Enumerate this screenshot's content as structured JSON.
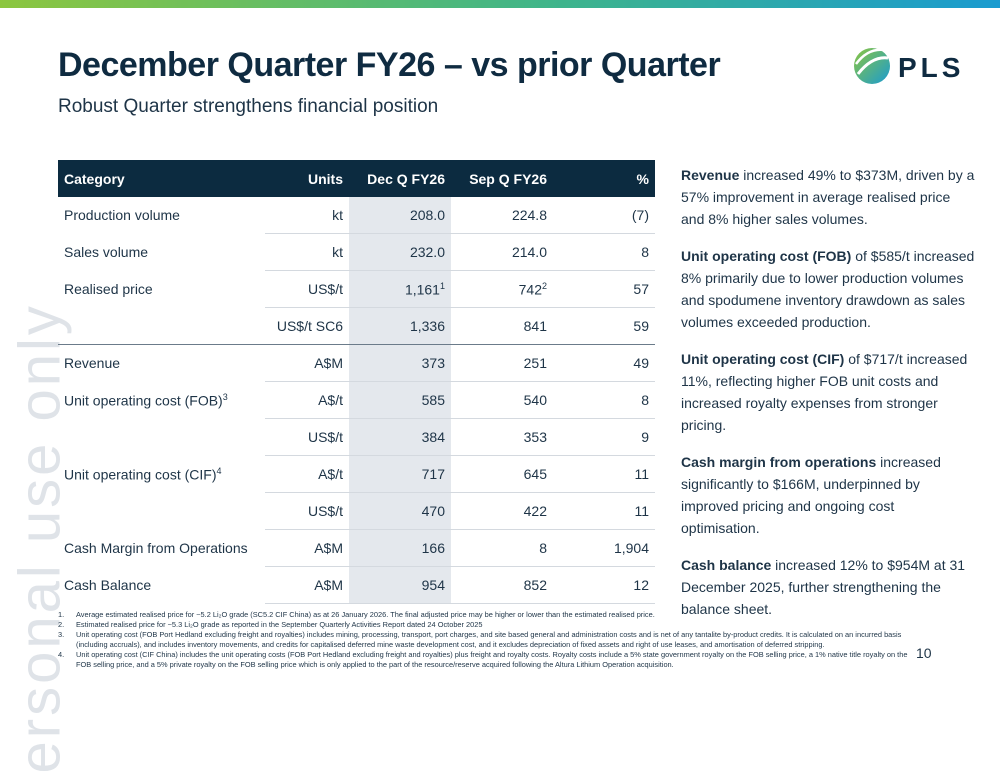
{
  "header": {
    "title": "December Quarter FY26 – vs prior Quarter",
    "subtitle": "Robust Quarter strengthens financial position",
    "logo": "PLS"
  },
  "watermark": "ersonal use only",
  "table": {
    "columns": [
      "Category",
      "Units",
      "Dec Q FY26",
      "Sep Q FY26",
      "%"
    ],
    "rows": [
      [
        "Production volume",
        "kt",
        "208.0",
        "224.8",
        "(7)"
      ],
      [
        "Sales volume",
        "kt",
        "232.0",
        "214.0",
        "8"
      ],
      [
        "Realised price",
        "US$/t",
        {
          "text": "1,161",
          "sup": "1"
        },
        {
          "text": "742",
          "sup": "2"
        },
        "57"
      ],
      [
        "",
        "US$/t SC6",
        "1,336",
        "841",
        "59"
      ],
      [
        "Revenue",
        "A$M",
        "373",
        "251",
        "49"
      ],
      [
        {
          "text": "Unit operating cost (FOB)",
          "sup": "3"
        },
        "A$/t",
        "585",
        "540",
        "8"
      ],
      [
        "",
        "US$/t",
        "384",
        "353",
        "9"
      ],
      [
        {
          "text": "Unit operating cost (CIF)",
          "sup": "4"
        },
        "A$/t",
        "717",
        "645",
        "11"
      ],
      [
        "",
        "US$/t",
        "470",
        "422",
        "11"
      ],
      [
        "Cash Margin from Operations",
        "A$M",
        "166",
        "8",
        "1,904"
      ],
      [
        "Cash Balance",
        "A$M",
        "954",
        "852",
        "12"
      ]
    ]
  },
  "commentary": [
    {
      "bold": "Revenue",
      "text": "increased 49% to $373M, driven by a 57% improvement in average realised price and 8% higher sales volumes."
    },
    {
      "bold": "Unit operating cost (FOB)",
      "text": "of $585/t increased 8% primarily due to lower production volumes and spodumene inventory drawdown as sales volumes exceeded production."
    },
    {
      "bold": "Unit operating cost (CIF)",
      "text": "of $717/t increased 11%, reflecting higher FOB unit costs and increased royalty expenses from stronger pricing."
    },
    {
      "bold": "Cash margin from operations",
      "text": "increased significantly to $166M, underpinned by improved pricing and ongoing cost optimisation."
    },
    {
      "bold": "Cash balance",
      "text": "increased 12% to $954M at 31 December 2025, further strengthening the balance sheet."
    }
  ],
  "footnotes": [
    {
      "num": "1.",
      "text": "Average estimated realised price for ~5.2 Li₂O grade (SC5.2 CIF China) as at 26 January 2026. The final adjusted price may be higher or lower than the estimated realised price."
    },
    {
      "num": "2.",
      "text": "Estimated realised price for ~5.3 Li₂O grade as reported in the September Quarterly Activities Report dated 24 October 2025"
    },
    {
      "num": "3.",
      "text": "Unit operating cost (FOB Port Hedland excluding freight and royalties) includes mining, processing, transport, port charges, and site based general and administration costs and is net of any tantalite by-product credits. It is calculated on an incurred basis (including accruals), and includes inventory movements, and credits for capitalised deferred mine waste development cost, and it excludes depreciation of fixed assets and right of use leases, and amortisation of deferred stripping."
    },
    {
      "num": "4.",
      "text": "Unit operating cost (CIF China) includes the unit operating costs (FOB Port Hedland excluding freight and royalties) plus freight and royalty costs. Royalty costs include a 5% state government royalty on the FOB selling price, a 1% native title royalty on the FOB selling price, and a 5% private royalty on the FOB selling price which is only applied to the part of the resource/reserve acquired following the Altura Lithium Operation acquisition."
    }
  ],
  "page_number": "10"
}
